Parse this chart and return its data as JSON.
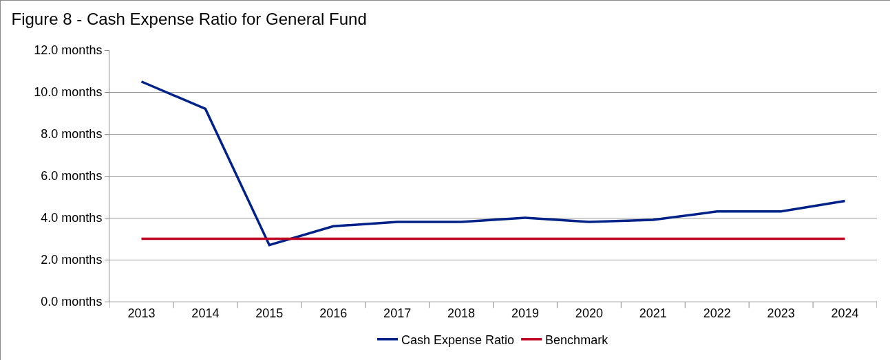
{
  "chart_data": {
    "type": "line",
    "title": "Figure 8 - Cash Expense Ratio for General Fund",
    "categories": [
      "2013",
      "2014",
      "2015",
      "2016",
      "2017",
      "2018",
      "2019",
      "2020",
      "2021",
      "2022",
      "2023",
      "2024"
    ],
    "series": [
      {
        "name": "Cash Expense Ratio",
        "color": "#002288",
        "values": [
          10.5,
          9.2,
          2.7,
          3.6,
          3.8,
          3.8,
          4.0,
          3.8,
          3.9,
          4.3,
          4.3,
          4.8
        ]
      },
      {
        "name": "Benchmark",
        "color": "#c00020",
        "values": [
          3.0,
          3.0,
          3.0,
          3.0,
          3.0,
          3.0,
          3.0,
          3.0,
          3.0,
          3.0,
          3.0,
          3.0
        ]
      }
    ],
    "ylim": [
      0,
      12
    ],
    "yticks": [
      {
        "value": 0,
        "label": "0.0 months"
      },
      {
        "value": 2,
        "label": "2.0 months"
      },
      {
        "value": 4,
        "label": "4.0 months"
      },
      {
        "value": 6,
        "label": "6.0 months"
      },
      {
        "value": 8,
        "label": "8.0 months"
      },
      {
        "value": 10,
        "label": "10.0 months"
      },
      {
        "value": 12,
        "label": "12.0 months"
      }
    ],
    "grid": "y",
    "legend": "bottom",
    "marker": "none",
    "line_style": "solid"
  }
}
